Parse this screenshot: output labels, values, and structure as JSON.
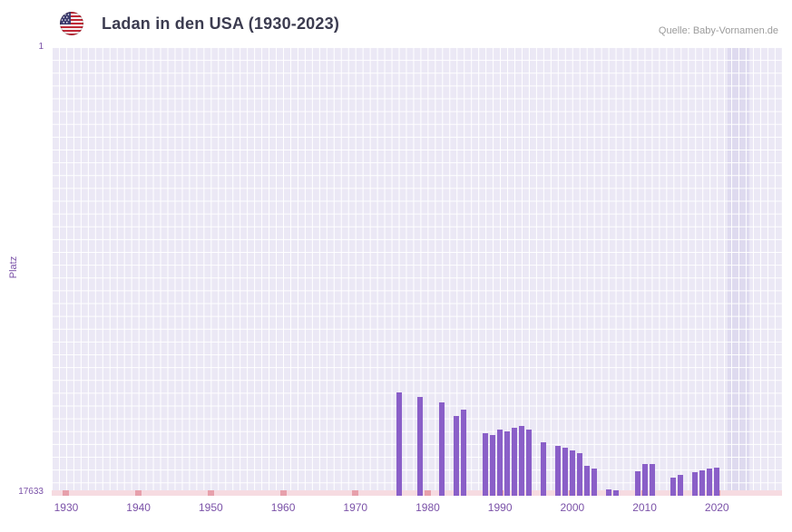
{
  "header": {
    "title": "Ladan in den USA (1930-2023)",
    "source": "Quelle: Baby-Vornamen.de"
  },
  "axes": {
    "y_label": "Platz",
    "y_top_tick": "1",
    "y_bottom_tick": "17633"
  },
  "chart_data": {
    "type": "bar",
    "title": "Ladan in den USA (1930-2023)",
    "xlabel": "",
    "ylabel": "Platz",
    "y_min": 1,
    "y_max": 17633,
    "y_inverted": true,
    "x_range": [
      1928,
      2029
    ],
    "x_ticks": [
      1930,
      1940,
      1950,
      1960,
      1970,
      1980,
      1990,
      2000,
      2010,
      2020
    ],
    "highlight_years": {
      "from": 2022,
      "to": 2023
    },
    "no_rank_marker_years": [
      1930,
      1940,
      1950,
      1960,
      1970,
      1980,
      1990,
      2000,
      2010,
      2020
    ],
    "colors": {
      "bar": "#8a5fc8",
      "plot_bg": "#ebe8f5",
      "grid": "#ffffff",
      "band": "#dedaef",
      "strip": "#f6dbe1",
      "strip_tick": "#e7a0ab",
      "tick_text": "#7b52a8",
      "title_text": "#3c3c50",
      "source_text": "#9b9b9b"
    },
    "points": [
      {
        "year": 1976,
        "rank": 13570
      },
      {
        "year": 1979,
        "rank": 13750
      },
      {
        "year": 1982,
        "rank": 13960
      },
      {
        "year": 1984,
        "rank": 14500
      },
      {
        "year": 1985,
        "rank": 14250
      },
      {
        "year": 1988,
        "rank": 15180
      },
      {
        "year": 1989,
        "rank": 15250
      },
      {
        "year": 1990,
        "rank": 15030
      },
      {
        "year": 1991,
        "rank": 15100
      },
      {
        "year": 1992,
        "rank": 14960
      },
      {
        "year": 1993,
        "rank": 14890
      },
      {
        "year": 1994,
        "rank": 15030
      },
      {
        "year": 1996,
        "rank": 15530
      },
      {
        "year": 1998,
        "rank": 15670
      },
      {
        "year": 1999,
        "rank": 15740
      },
      {
        "year": 2000,
        "rank": 15850
      },
      {
        "year": 2001,
        "rank": 15960
      },
      {
        "year": 2002,
        "rank": 16460
      },
      {
        "year": 2003,
        "rank": 16560
      },
      {
        "year": 2005,
        "rank": 17380
      },
      {
        "year": 2006,
        "rank": 17420
      },
      {
        "year": 2009,
        "rank": 16670
      },
      {
        "year": 2010,
        "rank": 16390
      },
      {
        "year": 2011,
        "rank": 16390
      },
      {
        "year": 2014,
        "rank": 16920
      },
      {
        "year": 2015,
        "rank": 16810
      },
      {
        "year": 2017,
        "rank": 16710
      },
      {
        "year": 2018,
        "rank": 16640
      },
      {
        "year": 2019,
        "rank": 16560
      },
      {
        "year": 2020,
        "rank": 16530
      }
    ]
  }
}
